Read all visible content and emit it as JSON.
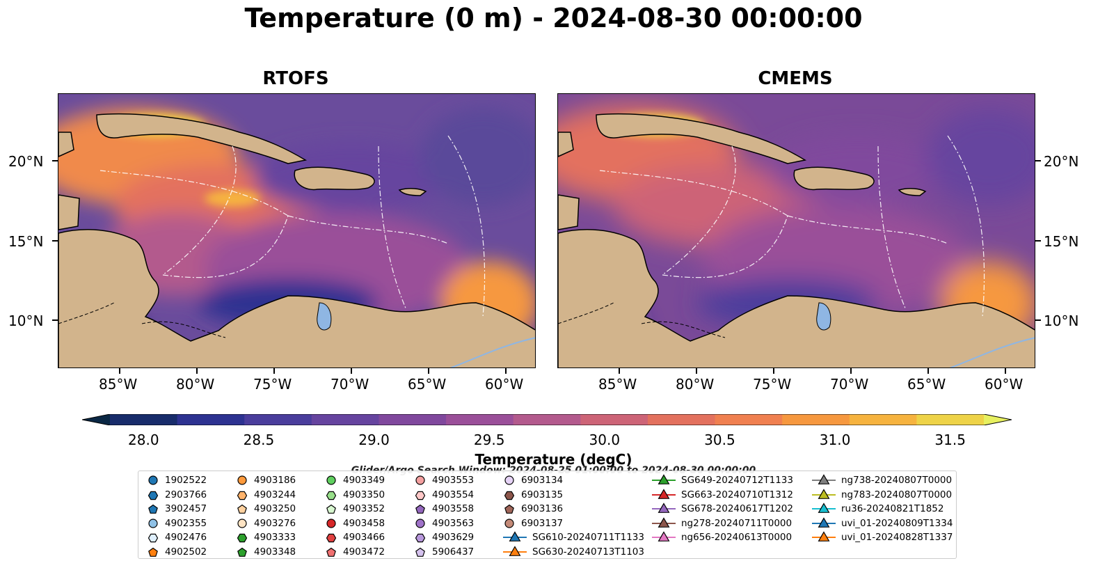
{
  "title": "Temperature (0 m) - 2024-08-30 00:00:00",
  "panels": [
    {
      "title": "RTOFS"
    },
    {
      "title": "CMEMS"
    }
  ],
  "lat_labels": [
    "20°N",
    "15°N",
    "10°N"
  ],
  "lon_labels": [
    "85°W",
    "80°W",
    "75°W",
    "70°W",
    "65°W",
    "60°W"
  ],
  "colorbar": {
    "label": "Temperature (degC)",
    "ticks": [
      "28.0",
      "28.5",
      "29.0",
      "29.5",
      "30.0",
      "30.5",
      "31.0",
      "31.5"
    ],
    "min": 28.0,
    "max": 31.5,
    "colors": [
      "#0a2744",
      "#182c6b",
      "#2d3291",
      "#4a3d9c",
      "#66449f",
      "#80489d",
      "#9a4f99",
      "#b35a8d",
      "#cd6477",
      "#e3715e",
      "#f08050",
      "#f6983f",
      "#f6b33f",
      "#eed348",
      "#e7f060"
    ],
    "extend": "both"
  },
  "search_window": "Glider/Argo Search Window: 2024-08-25 01:00:00 to 2024-08-30 00:00:00",
  "legend": {
    "columns": [
      [
        {
          "label": "1902522",
          "marker": "circle",
          "color": "#1f77b4"
        },
        {
          "label": "2903766",
          "marker": "hexagon",
          "color": "#1f77b4"
        },
        {
          "label": "3902457",
          "marker": "pentagon",
          "color": "#1f77b4"
        },
        {
          "label": "4902355",
          "marker": "circle",
          "color": "#8fc1e6"
        },
        {
          "label": "4902476",
          "marker": "hexagon",
          "color": "#dff0ff"
        },
        {
          "label": "4902502",
          "marker": "pentagon",
          "color": "#ff7f0e"
        }
      ],
      [
        {
          "label": "4903186",
          "marker": "circle",
          "color": "#ff9a3c"
        },
        {
          "label": "4903244",
          "marker": "hexagon",
          "color": "#ffb36b"
        },
        {
          "label": "4903250",
          "marker": "pentagon",
          "color": "#ffd2a0"
        },
        {
          "label": "4903276",
          "marker": "circle",
          "color": "#ffe4c4"
        },
        {
          "label": "4903333",
          "marker": "hexagon",
          "color": "#2ca02c"
        },
        {
          "label": "4903348",
          "marker": "pentagon",
          "color": "#2ca02c"
        }
      ],
      [
        {
          "label": "4903349",
          "marker": "circle",
          "color": "#5fcf5f"
        },
        {
          "label": "4903350",
          "marker": "hexagon",
          "color": "#98df8a"
        },
        {
          "label": "4903352",
          "marker": "pentagon",
          "color": "#d8f7d0"
        },
        {
          "label": "4903458",
          "marker": "circle",
          "color": "#d62728"
        },
        {
          "label": "4903466",
          "marker": "hexagon",
          "color": "#e04040"
        },
        {
          "label": "4903472",
          "marker": "pentagon",
          "color": "#f07070"
        }
      ],
      [
        {
          "label": "4903553",
          "marker": "circle",
          "color": "#f4a0a0"
        },
        {
          "label": "4903554",
          "marker": "hexagon",
          "color": "#ffc8c8"
        },
        {
          "label": "4903558",
          "marker": "pentagon",
          "color": "#9467bd"
        },
        {
          "label": "4903563",
          "marker": "circle",
          "color": "#9f72c8"
        },
        {
          "label": "4903629",
          "marker": "hexagon",
          "color": "#b898dc"
        },
        {
          "label": "5906437",
          "marker": "pentagon",
          "color": "#d5c2ee"
        }
      ],
      [
        {
          "label": "6903134",
          "marker": "circle",
          "color": "#e6d3f6"
        },
        {
          "label": "6903135",
          "marker": "hexagon",
          "color": "#8c564b"
        },
        {
          "label": "6903136",
          "marker": "pentagon",
          "color": "#a0665a"
        },
        {
          "label": "6903137",
          "marker": "circle",
          "color": "#c48a78"
        },
        {
          "label": "SG610-20240711T1133",
          "marker": "triangle",
          "color": "#1f77b4",
          "line": true
        },
        {
          "label": "SG630-20240713T1103",
          "marker": "triangle",
          "color": "#ff7f0e",
          "line": true
        }
      ],
      [
        {
          "label": "SG649-20240712T1133",
          "marker": "triangle",
          "color": "#2ca02c",
          "line": true
        },
        {
          "label": "SG663-20240710T1312",
          "marker": "triangle",
          "color": "#d62728",
          "line": true
        },
        {
          "label": "SG678-20240617T1202",
          "marker": "triangle",
          "color": "#9467bd",
          "line": true
        },
        {
          "label": "ng278-20240711T0000",
          "marker": "triangle",
          "color": "#8c564b",
          "line": true
        },
        {
          "label": "ng656-20240613T0000",
          "marker": "triangle",
          "color": "#e377c2",
          "line": true
        }
      ],
      [
        {
          "label": "ng738-20240807T0000",
          "marker": "triangle",
          "color": "#7f7f7f",
          "line": true
        },
        {
          "label": "ng783-20240807T0000",
          "marker": "triangle",
          "color": "#bcbd22",
          "line": true
        },
        {
          "label": "ru36-20240821T1852",
          "marker": "triangle",
          "color": "#17becf",
          "line": true
        },
        {
          "label": "uvi_01-20240809T1334",
          "marker": "triangle",
          "color": "#1f77b4",
          "line": true
        },
        {
          "label": "uvi_01-20240828T1337",
          "marker": "triangle",
          "color": "#ff7f0e",
          "line": true
        }
      ]
    ]
  }
}
